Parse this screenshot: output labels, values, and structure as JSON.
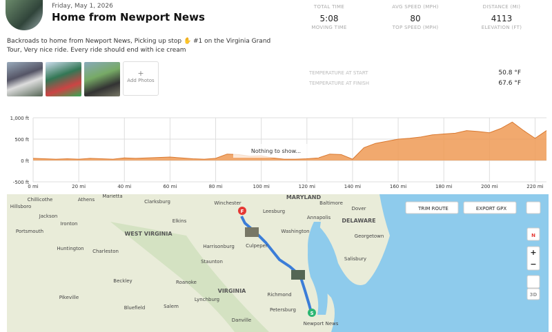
{
  "header": {
    "date": "Friday, May 1, 2026",
    "title": "Home from Newport News",
    "description": "Backroads to home from Newport News, Picking up stop ✋ #1 on the Virginia Grand Tour, Very nice ride. Every ride should end with ice cream",
    "add_photos": "Add Photos"
  },
  "stats": [
    {
      "label": "TOTAL TIME",
      "value": "5:08",
      "sublabel": "MOVING TIME"
    },
    {
      "label": "AVG SPEED (MPH)",
      "value": "80",
      "sublabel": "TOP SPEED (MPH)"
    },
    {
      "label": "DISTANCE (MI)",
      "value": "4113",
      "sublabel": "ELEVATION (FT)"
    }
  ],
  "temperature": [
    {
      "label": "TEMPERATURE AT START",
      "value": "50.8 °F"
    },
    {
      "label": "TEMPERATURE AT FINISH",
      "value": "67.6 °F"
    }
  ],
  "chart_data": {
    "type": "area",
    "color": "#ef9a55",
    "annotation": "Nothing to show...",
    "x": [
      0,
      5,
      10,
      15,
      20,
      25,
      30,
      35,
      40,
      45,
      50,
      55,
      60,
      65,
      70,
      75,
      80,
      85,
      90,
      95,
      100,
      105,
      110,
      115,
      120,
      125,
      130,
      135,
      140,
      145,
      150,
      155,
      160,
      165,
      170,
      175,
      180,
      185,
      190,
      195,
      200,
      205,
      210,
      215,
      220,
      225
    ],
    "values": [
      50,
      40,
      30,
      40,
      30,
      50,
      40,
      30,
      60,
      50,
      60,
      70,
      80,
      60,
      40,
      30,
      50,
      150,
      140,
      100,
      110,
      60,
      30,
      30,
      40,
      60,
      150,
      140,
      30,
      300,
      400,
      450,
      500,
      520,
      550,
      600,
      620,
      640,
      700,
      680,
      650,
      750,
      900,
      700,
      520,
      700
    ],
    "xlim": [
      0,
      225
    ],
    "ylim": [
      -500,
      1000
    ],
    "xticks": [
      {
        "value": 0,
        "label": "0 mi"
      },
      {
        "value": 20,
        "label": "20 mi"
      },
      {
        "value": 40,
        "label": "40 mi"
      },
      {
        "value": 60,
        "label": "60 mi"
      },
      {
        "value": 80,
        "label": "80 mi"
      },
      {
        "value": 100,
        "label": "100 mi"
      },
      {
        "value": 120,
        "label": "120 mi"
      },
      {
        "value": 140,
        "label": "140 mi"
      },
      {
        "value": 160,
        "label": "160 mi"
      },
      {
        "value": 180,
        "label": "180 mi"
      },
      {
        "value": 200,
        "label": "200 mi"
      },
      {
        "value": 220,
        "label": "220 mi"
      }
    ],
    "yticks": [
      {
        "value": 1000,
        "label": "1,000 ft"
      },
      {
        "value": 500,
        "label": "500 ft"
      },
      {
        "value": 0,
        "label": "0 ft"
      },
      {
        "value": -500,
        "label": "-500 ft"
      }
    ],
    "grid": true
  },
  "map": {
    "buttons": [
      "TRIM ROUTE",
      "EXPORT GPX"
    ],
    "compass": "N",
    "zoom_in": "+",
    "zoom_out": "−",
    "mode_3d": "3D",
    "start_marker": "S",
    "finish_marker": "F",
    "labels": [
      "Chillicothe",
      "Athens",
      "Marietta",
      "Clarksburg",
      "MARYLAND",
      "Dover",
      "Portsmouth",
      "Huntington",
      "Charleston",
      "WEST VIRGINIA",
      "Elkins",
      "Harrisonburg",
      "Staunton",
      "Leesburg",
      "Washington",
      "Annapolis",
      "DELAWARE",
      "Culpeper",
      "Salisbury",
      "Beckley",
      "VIRGINIA",
      "Lynchburg",
      "Richmond",
      "Salem",
      "Petersburg",
      "Pikeville",
      "Newport News",
      "Winchester",
      "Baltimore",
      "Georgetown",
      "Roanoke",
      "Bluefield",
      "Hillsboro",
      "Jackson",
      "Ironton",
      "Danville"
    ]
  }
}
